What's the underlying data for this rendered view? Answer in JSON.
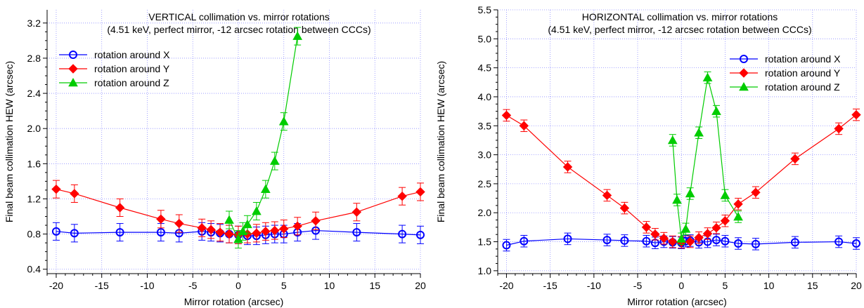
{
  "chart_data": [
    {
      "type": "line",
      "title": "VERTICAL collimation vs. mirror rotations",
      "subtitle": "(4.51 keV, perfect mirror, -12 arcsec rotation between CCCs)",
      "xlabel": "Mirror rotation (arcsec)",
      "ylabel": "Final beam collimation HEW (arcsec)",
      "xlim": [
        -21,
        20
      ],
      "ylim": [
        0.35,
        3.35
      ],
      "xticks": [
        -20,
        -15,
        -10,
        -5,
        0,
        5,
        10,
        15,
        20
      ],
      "xtick_labels": [
        "-20",
        "-15",
        "-10",
        "-5",
        "0",
        "5",
        "10",
        "15",
        "20"
      ],
      "yticks": [
        0.4,
        0.8,
        1.2,
        1.6,
        2.0,
        2.4,
        2.8,
        3.2
      ],
      "ytick_labels": [
        "0.4",
        "0.8",
        "1.2",
        "1.6",
        "2.0",
        "2.4",
        "2.8",
        "3.2"
      ],
      "grid": true,
      "legend_position": "top-left",
      "series": [
        {
          "name": "rotation around X",
          "color": "#0000ff",
          "marker": "circle",
          "x": [
            -20,
            -18,
            -13,
            -8.5,
            -6.5,
            -4,
            -3,
            -2,
            -1,
            0,
            1,
            2,
            3,
            4,
            5,
            6.5,
            8.5,
            13,
            18,
            20
          ],
          "y": [
            0.83,
            0.81,
            0.82,
            0.82,
            0.81,
            0.83,
            0.82,
            0.81,
            0.8,
            0.79,
            0.78,
            0.78,
            0.79,
            0.8,
            0.8,
            0.82,
            0.84,
            0.82,
            0.8,
            0.79
          ],
          "err": [
            0.1,
            0.1,
            0.1,
            0.1,
            0.1,
            0.1,
            0.1,
            0.1,
            0.1,
            0.1,
            0.1,
            0.1,
            0.1,
            0.1,
            0.1,
            0.1,
            0.1,
            0.1,
            0.1,
            0.1
          ]
        },
        {
          "name": "rotation around Y",
          "color": "#ff0000",
          "marker": "diamond",
          "x": [
            -20,
            -18,
            -13,
            -8.5,
            -6.5,
            -4,
            -3,
            -2,
            -1,
            0,
            1,
            2,
            3,
            4,
            5,
            6.5,
            8.5,
            13,
            18,
            20
          ],
          "y": [
            1.31,
            1.26,
            1.1,
            0.97,
            0.92,
            0.87,
            0.85,
            0.82,
            0.8,
            0.79,
            0.8,
            0.81,
            0.83,
            0.84,
            0.86,
            0.89,
            0.95,
            1.05,
            1.23,
            1.28
          ],
          "err": [
            0.1,
            0.1,
            0.1,
            0.1,
            0.1,
            0.1,
            0.1,
            0.1,
            0.1,
            0.1,
            0.1,
            0.1,
            0.1,
            0.1,
            0.1,
            0.1,
            0.1,
            0.1,
            0.1,
            0.1
          ]
        },
        {
          "name": "rotation around Z",
          "color": "#00cc00",
          "marker": "triangle",
          "x": [
            -1,
            0,
            0.5,
            1,
            2,
            3,
            4,
            5,
            6.5
          ],
          "y": [
            0.96,
            0.74,
            0.83,
            0.91,
            1.06,
            1.31,
            1.63,
            2.08,
            3.05
          ],
          "err": [
            0.1,
            0.1,
            0.1,
            0.1,
            0.1,
            0.1,
            0.1,
            0.1,
            0.1
          ]
        }
      ]
    },
    {
      "type": "line",
      "title": "HORIZONTAL collimation vs. mirror rotations",
      "subtitle": "(4.51 keV, perfect mirror, -12 arcsec rotation between CCCs)",
      "xlabel": "Mirror rotation (arcsec)",
      "ylabel": "Final beam collimation HEW (arcsec)",
      "xlim": [
        -21,
        20
      ],
      "ylim": [
        0.95,
        5.5
      ],
      "xticks": [
        -20,
        -15,
        -10,
        -5,
        0,
        5,
        10,
        15,
        20
      ],
      "xtick_labels": [
        "-20",
        "-15",
        "-10",
        "-5",
        "0",
        "5",
        "10",
        "15",
        "20"
      ],
      "yticks": [
        1.0,
        1.5,
        2.0,
        2.5,
        3.0,
        3.5,
        4.0,
        4.5,
        5.0,
        5.5
      ],
      "ytick_labels": [
        "1.0",
        "1.5",
        "2.0",
        "2.5",
        "3.0",
        "3.5",
        "4.0",
        "4.5",
        "5.0",
        "5.5"
      ],
      "grid": true,
      "legend_position": "top-right",
      "series": [
        {
          "name": "rotation around X",
          "color": "#0000ff",
          "marker": "circle",
          "x": [
            -20,
            -18,
            -13,
            -8.5,
            -6.5,
            -4,
            -3,
            -2,
            -1,
            0,
            0.5,
            1,
            2,
            3,
            4,
            5,
            6.5,
            8.5,
            13,
            18,
            20
          ],
          "y": [
            1.44,
            1.51,
            1.55,
            1.53,
            1.52,
            1.51,
            1.48,
            1.5,
            1.49,
            1.48,
            1.51,
            1.52,
            1.49,
            1.5,
            1.53,
            1.51,
            1.47,
            1.46,
            1.49,
            1.5,
            1.47
          ],
          "err": [
            0.1,
            0.1,
            0.1,
            0.1,
            0.1,
            0.1,
            0.1,
            0.1,
            0.1,
            0.1,
            0.1,
            0.1,
            0.1,
            0.1,
            0.1,
            0.1,
            0.1,
            0.1,
            0.1,
            0.1,
            0.1
          ]
        },
        {
          "name": "rotation around Y",
          "color": "#ff0000",
          "marker": "diamond",
          "x": [
            -20,
            -18,
            -13,
            -8.5,
            -6.5,
            -4,
            -3,
            -2,
            -1,
            0,
            1,
            2,
            3,
            4,
            5,
            6.5,
            8.5,
            13,
            18,
            20
          ],
          "y": [
            3.68,
            3.5,
            2.79,
            2.3,
            2.08,
            1.75,
            1.63,
            1.56,
            1.5,
            1.49,
            1.5,
            1.57,
            1.64,
            1.74,
            1.86,
            2.15,
            2.35,
            2.93,
            3.45,
            3.69
          ],
          "err": [
            0.1,
            0.1,
            0.1,
            0.1,
            0.1,
            0.1,
            0.1,
            0.1,
            0.1,
            0.1,
            0.1,
            0.1,
            0.1,
            0.1,
            0.1,
            0.1,
            0.1,
            0.1,
            0.1,
            0.1
          ]
        },
        {
          "name": "rotation around Z",
          "color": "#00cc00",
          "marker": "triangle",
          "x": [
            -1,
            -0.5,
            0,
            0.5,
            1,
            2,
            3,
            4,
            5,
            6.5
          ],
          "y": [
            3.25,
            2.22,
            1.55,
            1.72,
            2.33,
            3.38,
            4.33,
            3.75,
            2.3,
            1.93
          ],
          "err": [
            0.1,
            0.1,
            0.1,
            0.1,
            0.1,
            0.1,
            0.1,
            0.1,
            0.1,
            0.1
          ]
        }
      ]
    }
  ]
}
